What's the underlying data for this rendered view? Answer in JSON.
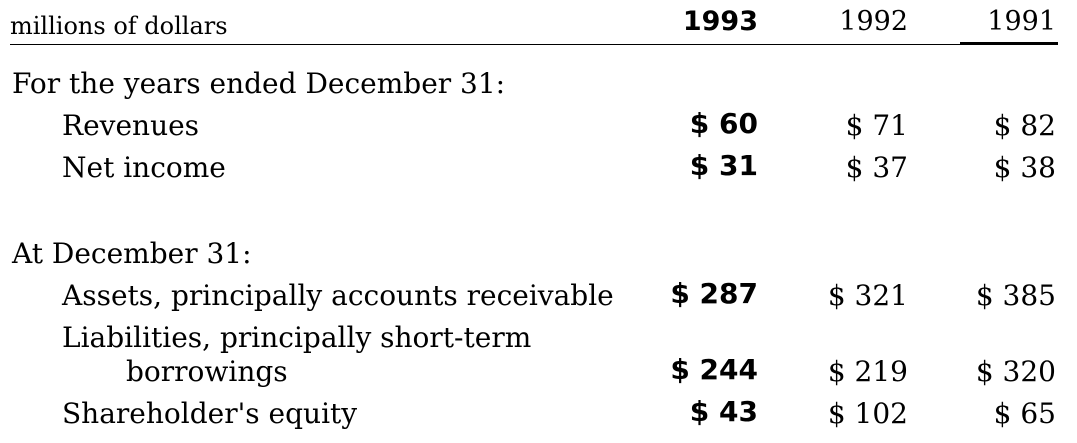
{
  "header": {
    "units": "millions of dollars",
    "year_1993": "1993",
    "year_1992": "1992",
    "year_1991": "1991"
  },
  "sections": [
    {
      "title": "For the years ended December 31:",
      "rows": [
        {
          "label": "Revenues",
          "v1993": "$ 60",
          "v1992": "$ 71",
          "v1991": "$ 82"
        },
        {
          "label": "Net income",
          "v1993": "$ 31",
          "v1992": "$ 37",
          "v1991": "$ 38"
        }
      ]
    },
    {
      "title": "At December 31:",
      "rows": [
        {
          "label": "Assets, principally accounts receivable",
          "v1993": "$ 287",
          "v1992": "$ 321",
          "v1991": "$ 385"
        },
        {
          "label": "Liabilities, principally short-term",
          "label2": "borrowings",
          "v1993": "$ 244",
          "v1992": "$ 219",
          "v1991": "$ 320"
        },
        {
          "label": "Shareholder's equity",
          "v1993": "$ 43",
          "v1992": "$ 102",
          "v1991": "$ 65"
        }
      ]
    }
  ]
}
